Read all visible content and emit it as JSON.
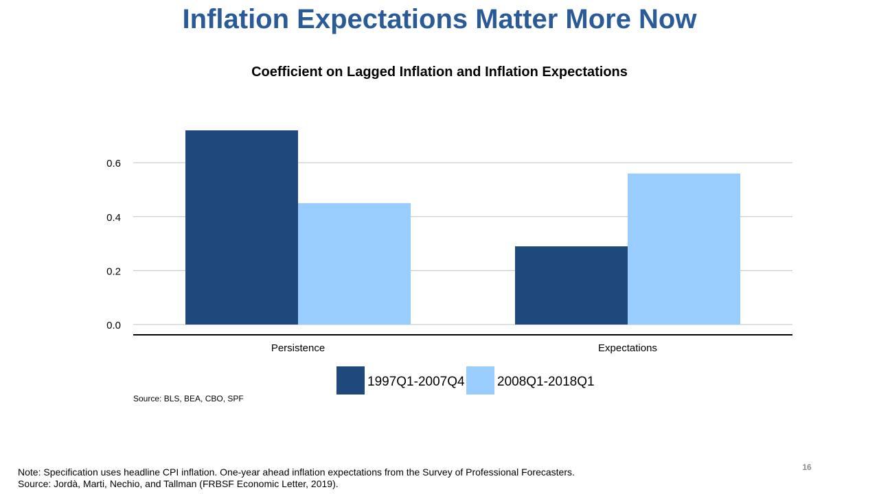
{
  "slide": {
    "title": "Inflation Expectations Matter More Now",
    "page_number": "16",
    "note": "Note: Specification uses headline CPI inflation. One-year ahead inflation expectations from the Survey of Professional Forecasters.",
    "source_footnote": "Source: Jordà, Marti, Nechio, and Tallman (FRBSF Economic Letter, 2019)."
  },
  "chart_data": {
    "type": "bar",
    "title": "Coefficient on Lagged Inflation and Inflation Expectations",
    "xlabel": "",
    "ylabel": "",
    "categories": [
      "Persistence",
      "Expectations"
    ],
    "series": [
      {
        "name": "1997Q1-2007Q4",
        "values": [
          0.72,
          0.29
        ],
        "color": "#1f497d"
      },
      {
        "name": "2008Q1-2018Q1",
        "values": [
          0.45,
          0.56
        ],
        "color": "#99ccff"
      }
    ],
    "ylim": [
      0,
      0.72
    ],
    "yticks": [
      "0.0",
      "0.2",
      "0.4",
      "0.6"
    ],
    "grid": true,
    "legend": "bottom-center",
    "source": "Source: BLS, BEA, CBO, SPF"
  }
}
